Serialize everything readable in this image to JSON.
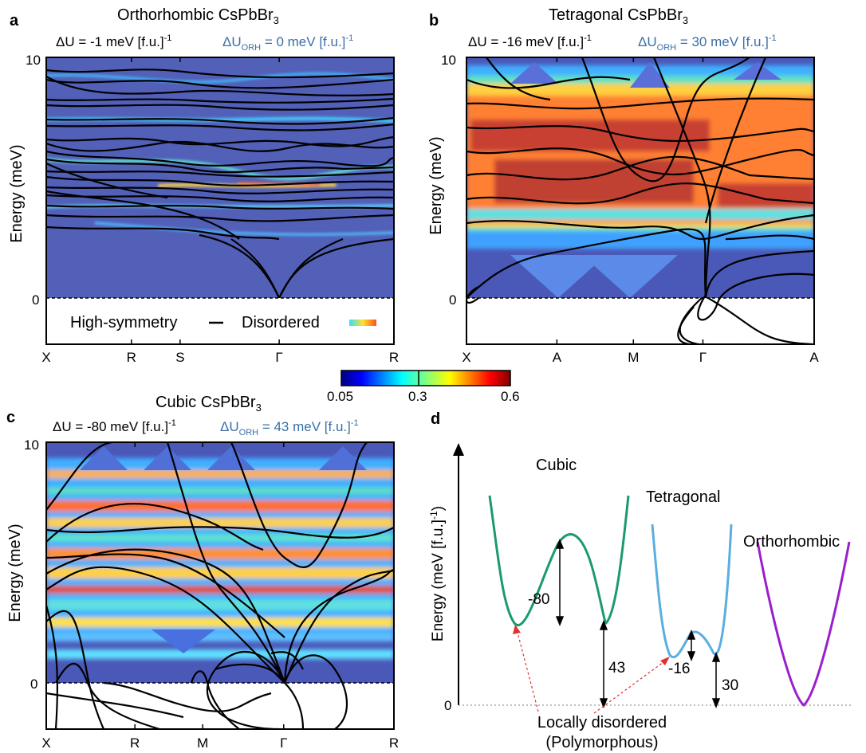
{
  "colors": {
    "hs_line": "#000000",
    "cubic_well": "#1b9a6e",
    "tetragonal_well": "#5aaee0",
    "orthorhombic_well": "#9a1fcc",
    "blue_text": "#3a6fa8"
  },
  "colorbar": {
    "ticks": [
      "0.05",
      "0.3",
      "0.6"
    ],
    "colormap": "jet",
    "range": [
      0.05,
      0.6
    ]
  },
  "chart_data": [
    {
      "type": "heatmap",
      "panel": "a",
      "title_main": "Orthorhombic CsPbBr",
      "title_sub": "3",
      "du_text": "ΔU = -1 meV [f.u.]",
      "du_sup": "-1",
      "duorh_prefix": "ΔU",
      "duorh_sub": "ORH",
      "duorh_text": " = 0 meV [f.u.]",
      "duorh_sup": "-1",
      "ylabel": "Energy (meV)",
      "yticks": [
        "0",
        "10"
      ],
      "ylim": [
        -2,
        10
      ],
      "kpoints": [
        "X",
        "R",
        "S",
        "Γ",
        "R"
      ],
      "kpoint_positions": [
        0,
        0.245,
        0.385,
        0.67,
        1.0
      ],
      "legend_hs": "High-symmetry",
      "legend_dis": "Disordered",
      "grid": false
    },
    {
      "type": "heatmap",
      "panel": "b",
      "title_main": "Tetragonal CsPbBr",
      "title_sub": "3",
      "du_text": "ΔU = -16 meV [f.u.]",
      "du_sup": "-1",
      "duorh_prefix": "ΔU",
      "duorh_sub": "ORH",
      "duorh_text": " = 30 meV [f.u.]",
      "duorh_sup": "-1",
      "ylabel": "Energy (meV)",
      "yticks": [
        "0",
        "10"
      ],
      "ylim": [
        -2,
        10
      ],
      "kpoints": [
        "X",
        "A",
        "M",
        "Γ",
        "A"
      ],
      "kpoint_positions": [
        0,
        0.26,
        0.48,
        0.68,
        1.0
      ],
      "grid": false
    },
    {
      "type": "heatmap",
      "panel": "c",
      "title_main": "Cubic CsPbBr",
      "title_sub": "3",
      "du_text": "ΔU = -80 meV [f.u.]",
      "du_sup": "-1",
      "duorh_prefix": "ΔU",
      "duorh_sub": "ORH",
      "duorh_text": " = 43 meV [f.u.]",
      "duorh_sup": "-1",
      "ylabel": "Energy (meV)",
      "yticks": [
        "0",
        "10"
      ],
      "ylim": [
        -2,
        10
      ],
      "kpoints": [
        "X",
        "R",
        "M",
        "Γ",
        "R"
      ],
      "kpoint_positions": [
        0,
        0.255,
        0.45,
        0.683,
        1.0
      ],
      "grid": false
    },
    {
      "type": "line",
      "panel": "d",
      "ylabel": "Energy (meV [f.u.]",
      "ylabel_sup": "-1",
      "ylabel_end": ")",
      "y_zero_label": "0",
      "series_labels": [
        "Cubic",
        "Tetragonal",
        "Orthorhombic"
      ],
      "annotations": [
        "-80",
        "43",
        "-16",
        "30"
      ],
      "note_line1": "Locally disordered",
      "note_line2": "(Polymorphous)"
    }
  ]
}
